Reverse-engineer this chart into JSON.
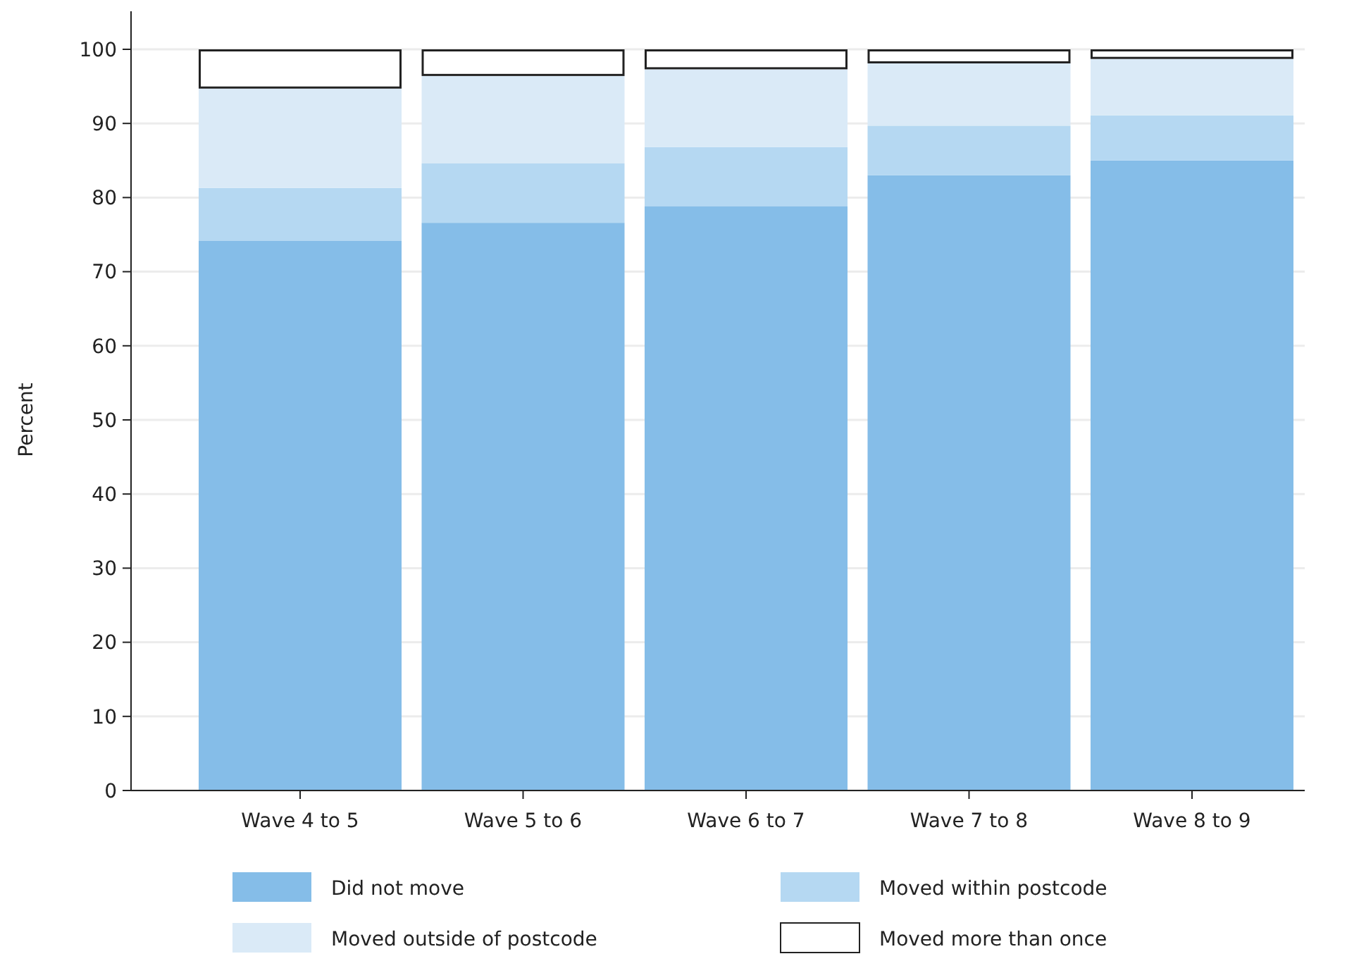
{
  "chart_data": {
    "type": "bar",
    "stacked": true,
    "ylabel": "Percent",
    "categories": [
      "Wave 4 to 5",
      "Wave 5 to 6",
      "Wave 6 to 7",
      "Wave 7 to 8",
      "Wave 8 to 9"
    ],
    "series": [
      {
        "name": "Did not move",
        "color": "#85bde8",
        "values": [
          74.2,
          76.6,
          78.8,
          83.0,
          85.0
        ]
      },
      {
        "name": "Moved within postcode",
        "color": "#b5d8f2",
        "values": [
          7.1,
          8.0,
          8.0,
          6.7,
          6.1
        ]
      },
      {
        "name": "Moved outside of postcode",
        "color": "#daeaf7",
        "values": [
          13.4,
          11.8,
          10.5,
          8.4,
          7.6
        ]
      },
      {
        "name": "Moved more than once",
        "color": "#ffffff",
        "values": [
          5.3,
          3.6,
          2.7,
          1.9,
          1.3
        ]
      }
    ],
    "ylim": [
      0,
      100
    ],
    "yticks": [
      0,
      10,
      20,
      30,
      40,
      50,
      60,
      70,
      80,
      90,
      100
    ],
    "grid": "y",
    "legend": "bottom"
  }
}
